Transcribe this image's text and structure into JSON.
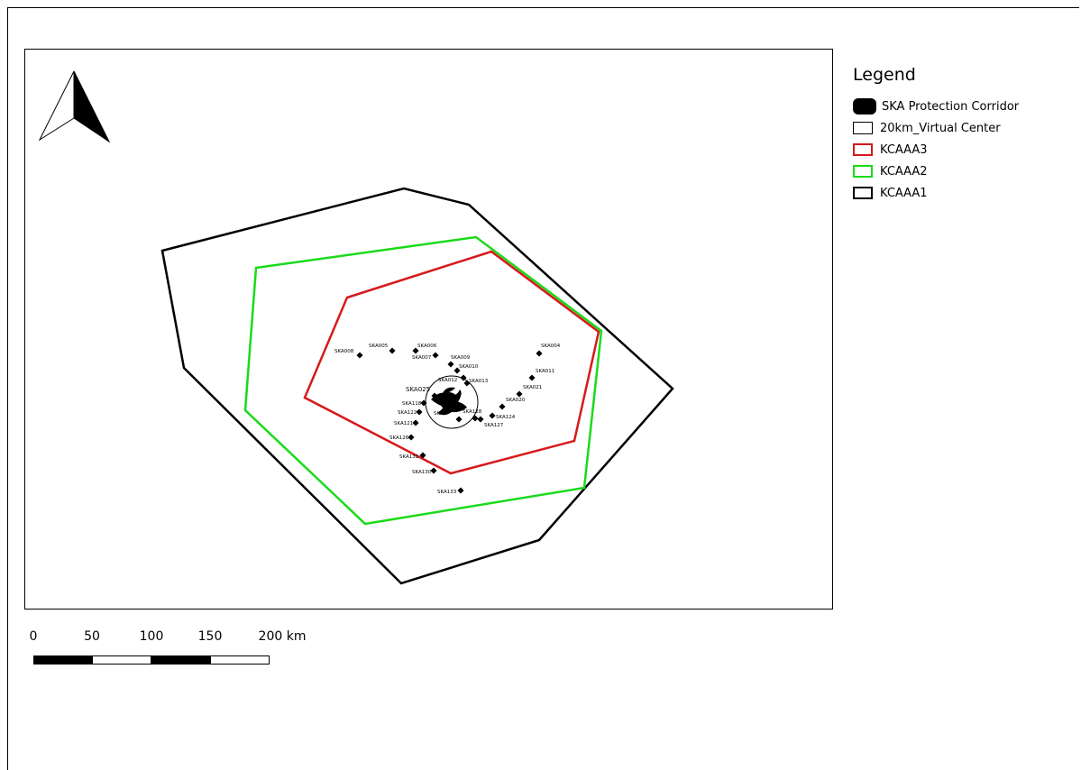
{
  "legend": {
    "title": "Legend",
    "items": [
      {
        "label": "SKA Protection Corridor",
        "icon": "filled-blob-icon",
        "color": "#000000"
      },
      {
        "label": "20km_Virtual Center",
        "icon": "outline-box-icon",
        "color": "#000000"
      },
      {
        "label": "KCAAA3",
        "icon": "polygon-outline-icon",
        "color": "#d7191c"
      },
      {
        "label": "KCAAA2",
        "icon": "polygon-outline-icon",
        "color": "#1adb1a"
      },
      {
        "label": "KCAAA1",
        "icon": "polygon-outline-icon",
        "color": "#000000"
      }
    ]
  },
  "scale_bar": {
    "labels": [
      "0",
      "50",
      "100",
      "150",
      "200 km"
    ],
    "unit": "km"
  },
  "north_arrow": {
    "icon": "north-arrow-icon"
  },
  "sites": [
    {
      "name": "SKA008"
    },
    {
      "name": "SKA005"
    },
    {
      "name": "SKA006"
    },
    {
      "name": "SKA007"
    },
    {
      "name": "SKA009"
    },
    {
      "name": "SKA010"
    },
    {
      "name": "SKA012"
    },
    {
      "name": "SKA013"
    },
    {
      "name": "SKA004"
    },
    {
      "name": "SKA011"
    },
    {
      "name": "SKA021"
    },
    {
      "name": "SKA020"
    },
    {
      "name": "SKA124"
    },
    {
      "name": "SKA127"
    },
    {
      "name": "SKA128"
    },
    {
      "name": "SKA025"
    },
    {
      "name": "SKA118"
    },
    {
      "name": "SKA122"
    },
    {
      "name": "SKA121"
    },
    {
      "name": "SKA126"
    },
    {
      "name": "SKA131"
    },
    {
      "name": "SKA130"
    },
    {
      "name": "SKA133"
    },
    {
      "name": "SKA"
    }
  ]
}
